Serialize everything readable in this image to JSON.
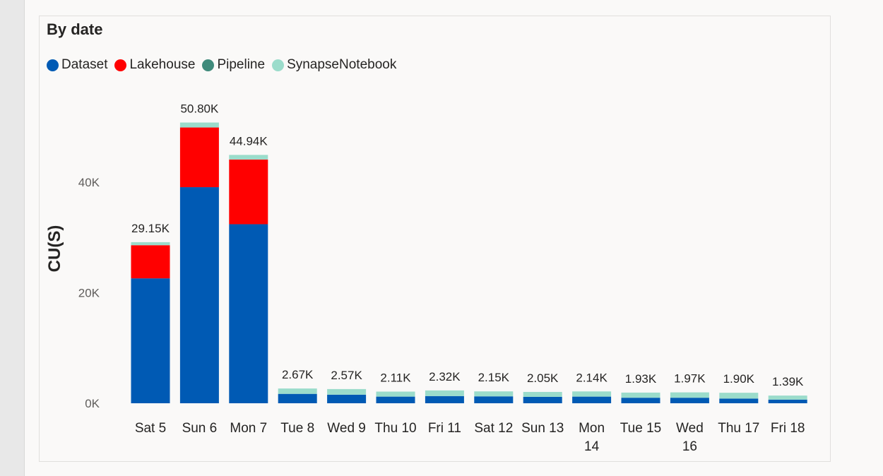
{
  "card": {
    "title": "By date"
  },
  "legend": [
    {
      "label": "Dataset",
      "color": "#005ab4"
    },
    {
      "label": "Lakehouse",
      "color": "#ff0000"
    },
    {
      "label": "Pipeline",
      "color": "#3f8a7b"
    },
    {
      "label": "SynapseNotebook",
      "color": "#9bdccb"
    }
  ],
  "chart_data": {
    "type": "bar",
    "stacked": true,
    "title": "By date",
    "xlabel": "",
    "ylabel": "CU(S)",
    "ylim": [
      0,
      54000
    ],
    "yticks": [
      {
        "value": 0,
        "label": "0K"
      },
      {
        "value": 20000,
        "label": "20K"
      },
      {
        "value": 40000,
        "label": "40K"
      }
    ],
    "categories": [
      [
        "Sat 5"
      ],
      [
        "Sun 6"
      ],
      [
        "Mon 7"
      ],
      [
        "Tue 8"
      ],
      [
        "Wed 9"
      ],
      [
        "Thu 10"
      ],
      [
        "Fri 11"
      ],
      [
        "Sat 12"
      ],
      [
        "Sun 13"
      ],
      [
        "Mon",
        "14"
      ],
      [
        "Tue 15"
      ],
      [
        "Wed",
        "16"
      ],
      [
        "Thu 17"
      ],
      [
        "Fri 18"
      ]
    ],
    "series": [
      {
        "name": "Dataset",
        "color": "#005ab4",
        "values": [
          22600,
          39100,
          32400,
          1700,
          1550,
          1200,
          1300,
          1250,
          1150,
          1200,
          1000,
          1000,
          850,
          650
        ]
      },
      {
        "name": "Lakehouse",
        "color": "#ff0000",
        "values": [
          6000,
          10800,
          11700,
          0,
          0,
          0,
          0,
          0,
          0,
          0,
          0,
          0,
          0,
          0
        ]
      },
      {
        "name": "Pipeline",
        "color": "#3f8a7b",
        "values": [
          0,
          0,
          0,
          0,
          0,
          0,
          0,
          0,
          0,
          0,
          0,
          0,
          0,
          0
        ]
      },
      {
        "name": "SynapseNotebook",
        "color": "#9bdccb",
        "values": [
          550,
          900,
          840,
          970,
          1020,
          910,
          1020,
          900,
          900,
          940,
          930,
          970,
          1050,
          740
        ]
      }
    ],
    "totals_labels": [
      "29.15K",
      "50.80K",
      "44.94K",
      "2.67K",
      "2.57K",
      "2.11K",
      "2.32K",
      "2.15K",
      "2.05K",
      "2.14K",
      "1.93K",
      "1.97K",
      "1.90K",
      "1.39K"
    ],
    "grid": false,
    "legend_position": "top-left"
  }
}
